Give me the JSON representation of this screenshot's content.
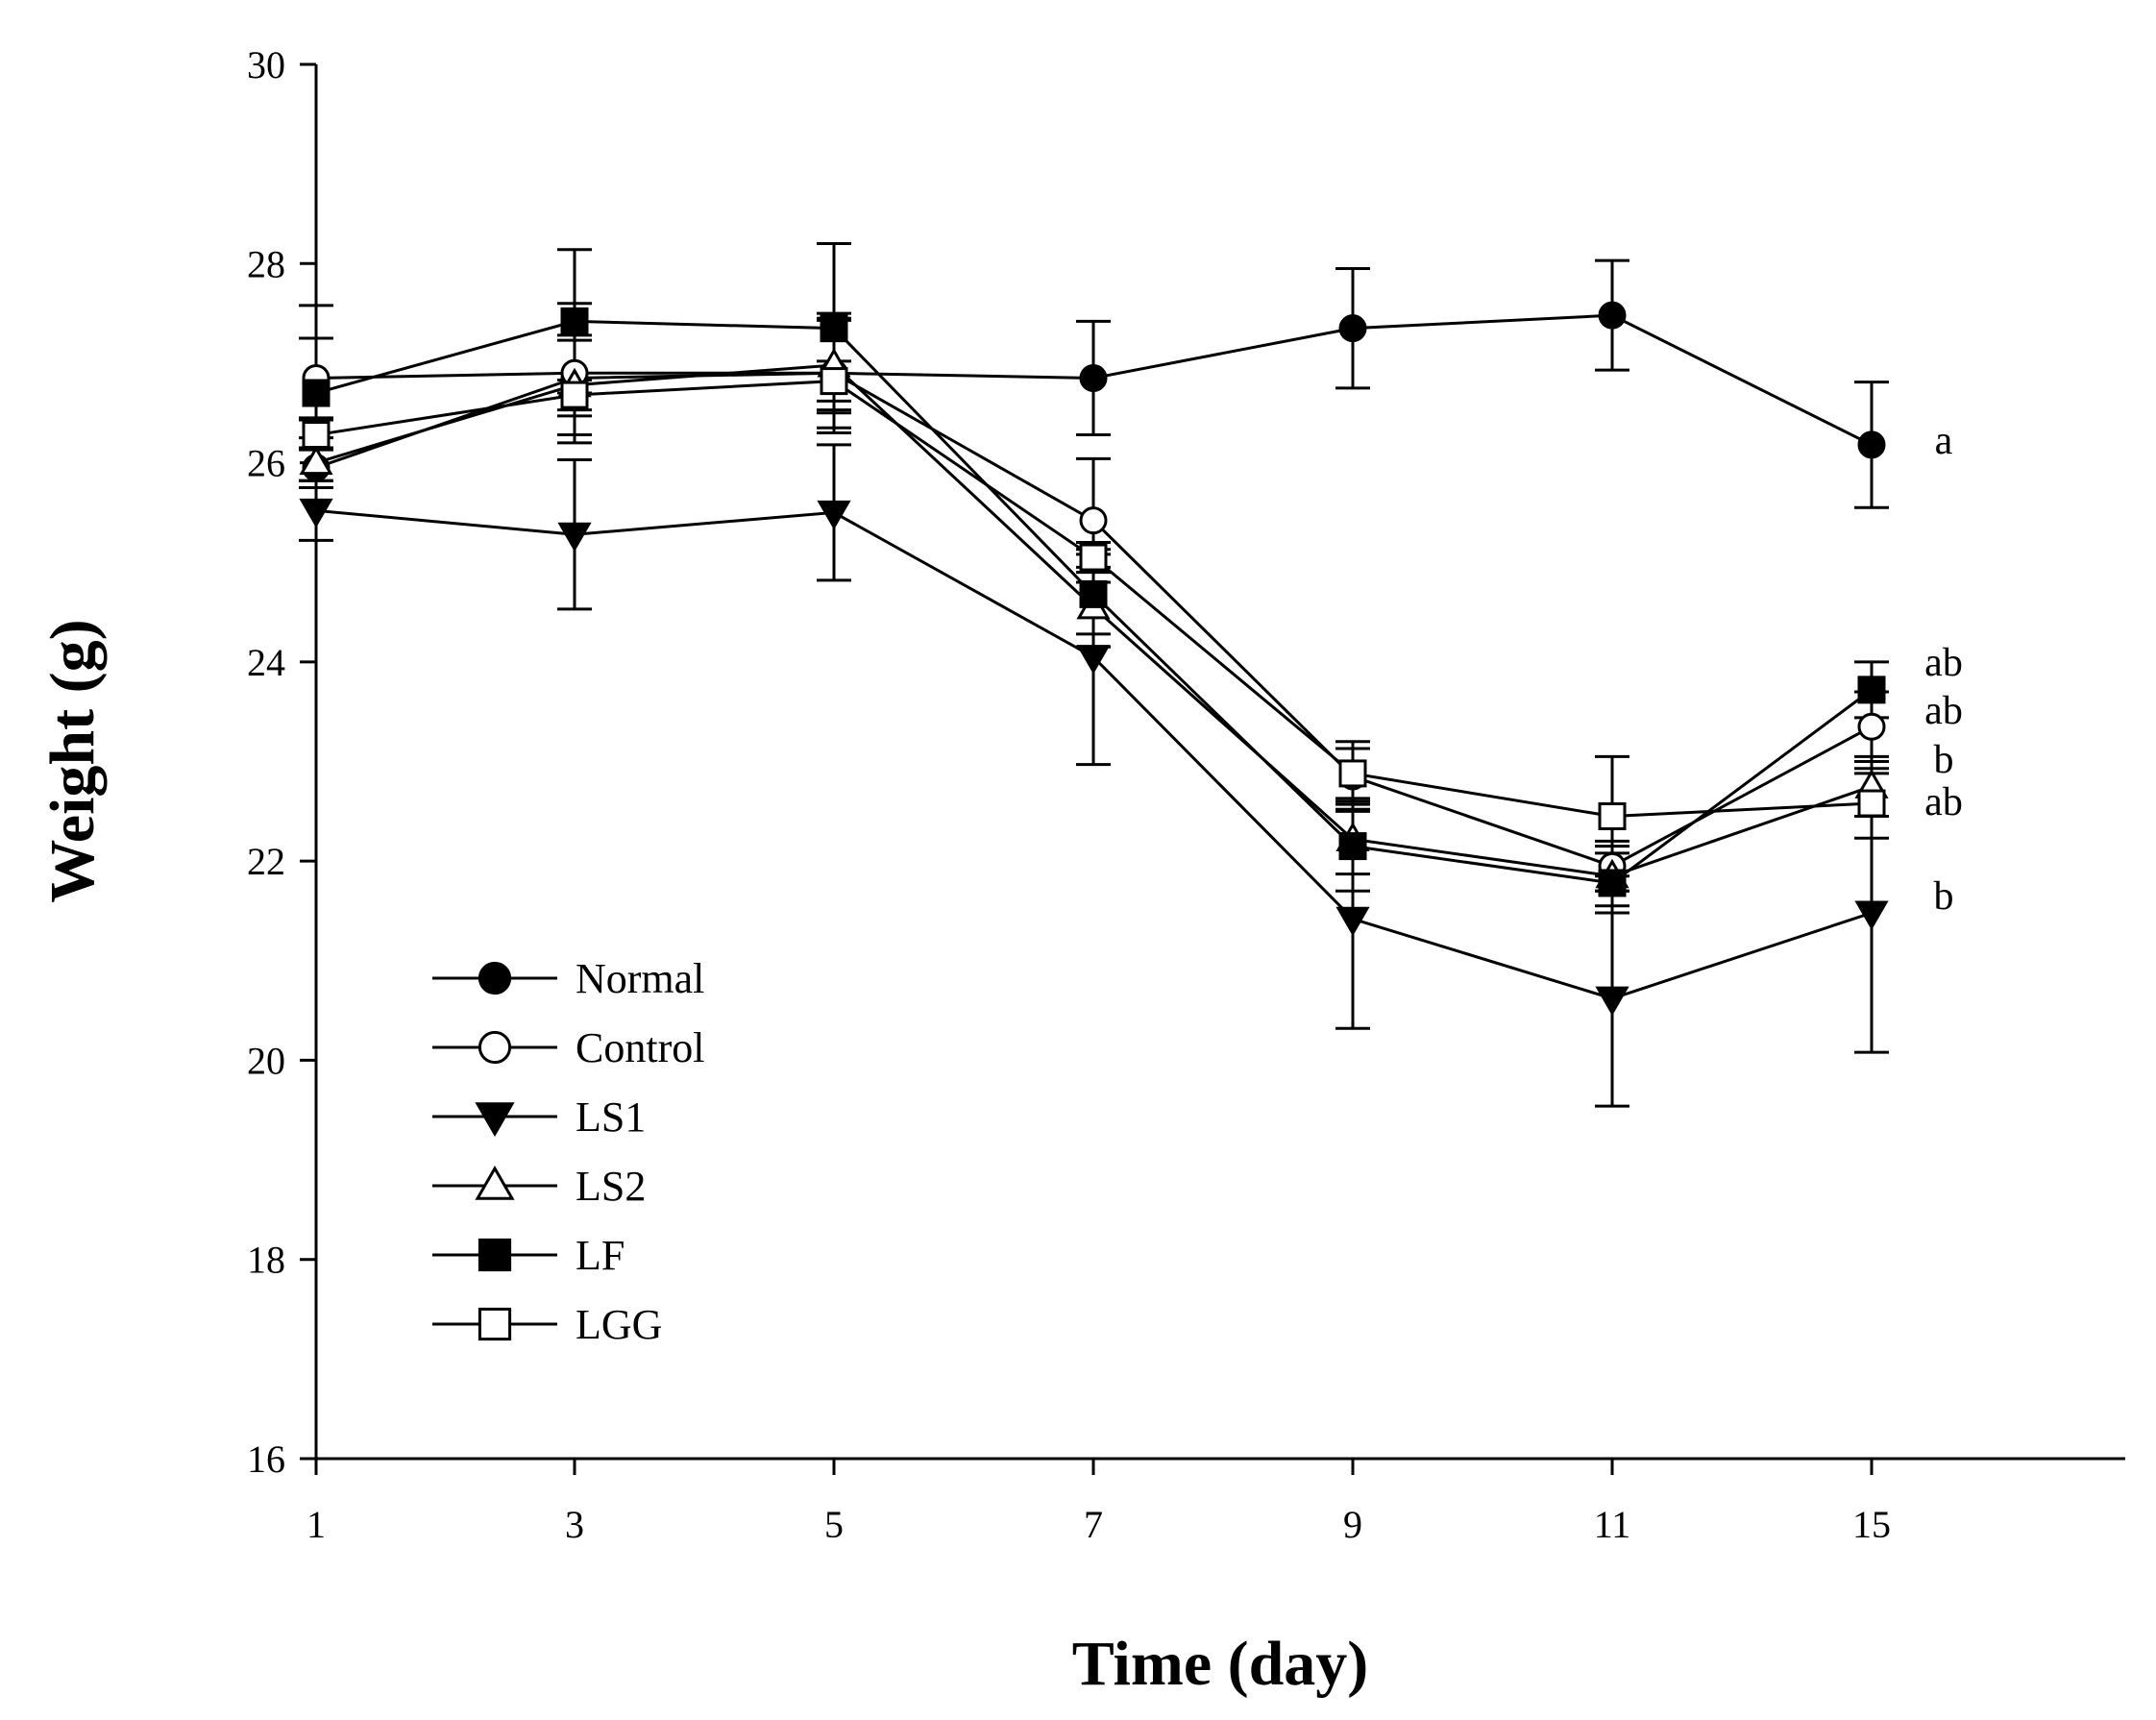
{
  "chart_data": {
    "type": "line",
    "xlabel": "Time (day)",
    "ylabel": "Weight (g)",
    "x_ticks": [
      "1",
      "3",
      "5",
      "7",
      "9",
      "11",
      "15"
    ],
    "y_ticks": [
      "16",
      "18",
      "20",
      "22",
      "24",
      "26",
      "28",
      "30"
    ],
    "ylim": [
      16,
      30
    ],
    "grid": false,
    "legend_position": "bottom-left",
    "series": [
      {
        "name": "Normal",
        "marker": "filled-circle",
        "y": [
          25.95,
          26.85,
          26.9,
          26.85,
          27.35,
          27.48,
          26.18
        ],
        "err": [
          0.2,
          0.38,
          0.55,
          0.57,
          0.6,
          0.55,
          0.63
        ]
      },
      {
        "name": "Control",
        "marker": "open-circle",
        "y": [
          26.85,
          26.9,
          26.9,
          25.42,
          22.85,
          21.95,
          23.35
        ],
        "err": [
          0.4,
          0.7,
          0.6,
          0.62,
          0.35,
          0.25,
          0.35
        ]
      },
      {
        "name": "LS1",
        "marker": "filled-down-triangle",
        "y": [
          25.52,
          25.28,
          25.5,
          24.05,
          21.42,
          20.62,
          21.48
        ],
        "err": [
          0.3,
          0.75,
          0.68,
          1.08,
          1.1,
          1.08,
          1.4
        ]
      },
      {
        "name": "LS2",
        "marker": "open-up-triangle",
        "y": [
          26.0,
          26.78,
          26.98,
          24.55,
          22.22,
          21.85,
          22.75
        ],
        "err": [
          0.25,
          0.5,
          0.45,
          0.4,
          0.35,
          0.3,
          0.3
        ]
      },
      {
        "name": "LF",
        "marker": "filled-square",
        "y": [
          26.7,
          27.42,
          27.35,
          24.68,
          22.15,
          21.78,
          23.72
        ],
        "err": [
          0.88,
          0.72,
          0.85,
          0.4,
          0.45,
          0.3,
          0.28
        ]
      },
      {
        "name": "LGG",
        "marker": "open-square",
        "y": [
          26.28,
          26.68,
          26.82,
          25.05,
          22.88,
          22.45,
          22.58
        ],
        "err": [
          0.15,
          0.15,
          0.2,
          0.15,
          0.25,
          0.6,
          0.35
        ]
      }
    ],
    "annotations": [
      {
        "series": "Normal",
        "text": "a"
      },
      {
        "series": "LF",
        "text": "ab"
      },
      {
        "series": "Control",
        "text": "ab"
      },
      {
        "series": "LS2",
        "text": "b"
      },
      {
        "series": "LGG",
        "text": "ab"
      },
      {
        "series": "LS1",
        "text": "b"
      }
    ]
  }
}
